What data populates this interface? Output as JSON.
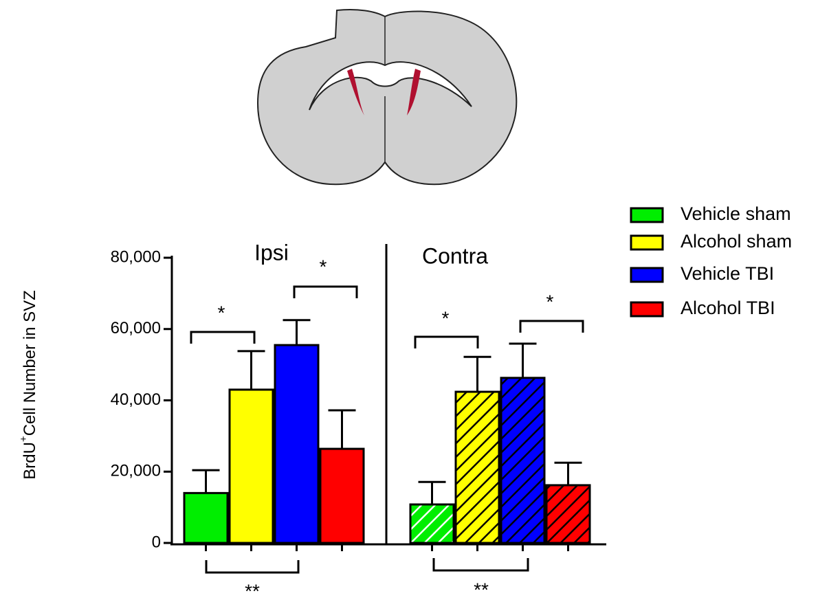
{
  "chart_data": {
    "type": "bar",
    "ylabel": {
      "base": "BrdU",
      "sup": "+",
      "rest": "Cell Number in SVZ"
    },
    "categories": [
      "Ipsi",
      "Contra"
    ],
    "hatched": [
      false,
      true
    ],
    "series": [
      {
        "name": "Vehicle sham",
        "color": "#00ee00",
        "hatch_color": "#ffffff",
        "values": [
          14000,
          10800
        ],
        "errors": [
          6400,
          6300
        ]
      },
      {
        "name": "Alcohol sham",
        "color": "#ffff00",
        "hatch_color": "#000000",
        "values": [
          43000,
          42400
        ],
        "errors": [
          10800,
          9800
        ]
      },
      {
        "name": "Vehicle TBI",
        "color": "#0000ff",
        "hatch_color": "#000000",
        "values": [
          55500,
          46300
        ],
        "errors": [
          7000,
          9600
        ]
      },
      {
        "name": "Alcohol TBI",
        "color": "#ff0000",
        "hatch_color": "#000000",
        "values": [
          26400,
          16200
        ],
        "errors": [
          10800,
          6300
        ]
      }
    ],
    "ylim": [
      0,
      80000
    ],
    "yticks": [
      0,
      {
        "value": 20000,
        "label": "20,000"
      },
      {
        "value": 40000,
        "label": "40,000"
      },
      {
        "value": 60000,
        "label": "60,000"
      },
      {
        "value": 80000,
        "label": "80,000"
      }
    ],
    "annotations": [
      "*",
      "*",
      "*",
      "*",
      "**",
      "**"
    ]
  }
}
